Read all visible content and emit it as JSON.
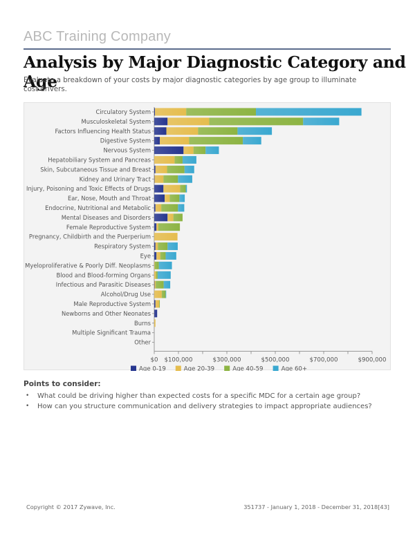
{
  "header": {
    "company": "ABC Training Company",
    "title": "Analysis by Major Diagnostic Category and Age",
    "subtitle": "Evaluate a breakdown of your costs by major diagnostic categories by age group to illuminate cost drivers."
  },
  "chart_data": {
    "type": "bar",
    "orientation": "horizontal",
    "stacked": true,
    "title": "",
    "xlabel": "",
    "ylabel": "",
    "units": "USD",
    "xlim": [
      0,
      900000
    ],
    "xticks": [
      0,
      100000,
      200000,
      300000,
      400000,
      500000,
      600000,
      700000,
      800000,
      900000
    ],
    "xtick_labels": [
      "$0",
      "$100,000",
      "",
      "$300,000",
      "",
      "$500,000",
      "",
      "$700,000",
      "",
      "$900,000"
    ],
    "grid": false,
    "legend_position": "bottom",
    "categories": [
      "Circulatory System",
      "Musculoskeletal System",
      "Factors Influencing Health Status",
      "Digestive System",
      "Nervous System",
      "Hepatobiliary System and Pancreas",
      "Skin, Subcutaneous Tissue and Breast",
      "Kidney and Urinary Tract",
      "Injury, Poisoning and Toxic Effects of Drugs",
      "Ear, Nose, Mouth and Throat",
      "Endocrine, Nutritional and Metabolic",
      "Mental Diseases and Disorders",
      "Female Reproductive System",
      "Pregnancy, Childbirth and the Puerperium",
      "Respiratory System",
      "Eye",
      "Myeloproliferative & Poorly Diff. Neoplasms",
      "Blood and Blood-forming Organs",
      "Infectious and Parasitic Diseases",
      "Alcohol/Drug Use",
      "Male Reproductive System",
      "Newborns and Other Neonates",
      "Burns",
      "Multiple Significant Trauma",
      "Other"
    ],
    "series": [
      {
        "name": "Age 0-19",
        "color": "#27368f",
        "values": [
          3000,
          55000,
          50000,
          23000,
          121000,
          0,
          5000,
          1000,
          38000,
          43000,
          5000,
          55000,
          9000,
          0,
          5000,
          9000,
          0,
          0,
          1000,
          0,
          5000,
          12000,
          0,
          0,
          0
        ]
      },
      {
        "name": "Age 20-39",
        "color": "#e5bd4e",
        "values": [
          129000,
          172000,
          131000,
          121000,
          41000,
          84000,
          48000,
          37000,
          69000,
          21000,
          24000,
          24000,
          8000,
          96000,
          10000,
          16000,
          2000,
          7000,
          5000,
          31000,
          15000,
          0,
          5000,
          0,
          0
        ]
      },
      {
        "name": "Age 40-59",
        "color": "#8db443",
        "values": [
          288000,
          388000,
          163000,
          222000,
          50000,
          33000,
          72000,
          60000,
          23000,
          40000,
          69000,
          38000,
          89000,
          0,
          40000,
          22000,
          17000,
          7000,
          33000,
          16000,
          3000,
          0,
          0,
          0,
          0
        ]
      },
      {
        "name": "Age 60+",
        "color": "#3aa8d0",
        "values": [
          436000,
          149000,
          142000,
          76000,
          55000,
          57000,
          40000,
          59000,
          5000,
          22000,
          26000,
          0,
          0,
          0,
          42000,
          44000,
          54000,
          54000,
          27000,
          2000,
          0,
          0,
          0,
          0,
          0
        ]
      }
    ]
  },
  "points": {
    "title": "Points to consider:",
    "bullet": "•",
    "items": [
      "What could be driving higher than expected costs for a specific MDC for a certain age group?",
      "How can you structure communication and delivery strategies to impact appropriate audiences?"
    ]
  },
  "footer": {
    "copyright": "Copyright © 2017 Zywave, Inc.",
    "report_info": "351737 - January 1, 2018 - December 31, 2018[43]"
  }
}
